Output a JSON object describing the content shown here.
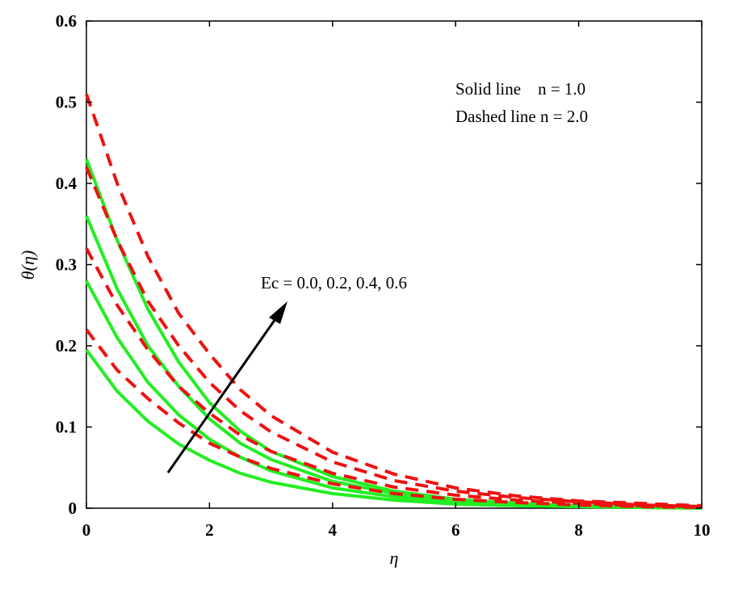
{
  "chart_data": {
    "type": "line",
    "x_label": "η",
    "y_label": "θ(η)",
    "annotations": [
      "Solid line    n = 1.0",
      "Dashed line n = 2.0",
      "Ec = 0.0, 0.2, 0.4, 0.6"
    ],
    "x": [
      0,
      0.5,
      1,
      1.5,
      2,
      2.5,
      3,
      4,
      5,
      6,
      7,
      8,
      9,
      10
    ],
    "series": [
      {
        "color": "#22ee22",
        "dashed": false,
        "values": [
          0.195,
          0.144,
          0.107,
          0.079,
          0.059,
          0.043,
          0.032,
          0.018,
          0.01,
          0.005,
          0.003,
          0.002,
          0.001,
          0.0
        ]
      },
      {
        "color": "#22ee22",
        "dashed": false,
        "values": [
          0.28,
          0.21,
          0.155,
          0.115,
          0.085,
          0.063,
          0.046,
          0.025,
          0.014,
          0.008,
          0.004,
          0.002,
          0.001,
          0.0
        ]
      },
      {
        "color": "#22ee22",
        "dashed": false,
        "values": [
          0.36,
          0.27,
          0.2,
          0.15,
          0.11,
          0.08,
          0.06,
          0.033,
          0.018,
          0.01,
          0.005,
          0.003,
          0.002,
          0.001
        ]
      },
      {
        "color": "#22ee22",
        "dashed": false,
        "values": [
          0.43,
          0.33,
          0.245,
          0.18,
          0.13,
          0.095,
          0.07,
          0.039,
          0.021,
          0.011,
          0.006,
          0.003,
          0.002,
          0.001
        ]
      },
      {
        "color": "#ee1111",
        "dashed": true,
        "values": [
          0.22,
          0.17,
          0.135,
          0.105,
          0.08,
          0.063,
          0.049,
          0.03,
          0.018,
          0.011,
          0.007,
          0.004,
          0.002,
          0.001
        ]
      },
      {
        "color": "#ee1111",
        "dashed": true,
        "values": [
          0.32,
          0.25,
          0.195,
          0.15,
          0.117,
          0.09,
          0.07,
          0.043,
          0.026,
          0.016,
          0.01,
          0.006,
          0.003,
          0.002
        ]
      },
      {
        "color": "#ee1111",
        "dashed": true,
        "values": [
          0.42,
          0.33,
          0.255,
          0.2,
          0.155,
          0.12,
          0.094,
          0.057,
          0.034,
          0.021,
          0.013,
          0.008,
          0.004,
          0.002
        ]
      },
      {
        "color": "#ee1111",
        "dashed": true,
        "values": [
          0.51,
          0.4,
          0.31,
          0.24,
          0.19,
          0.146,
          0.114,
          0.069,
          0.042,
          0.025,
          0.015,
          0.009,
          0.006,
          0.003
        ]
      }
    ],
    "xlim": [
      0,
      10
    ],
    "xticks": [
      0,
      2,
      4,
      6,
      8,
      10
    ],
    "ylim": [
      0,
      0.6
    ],
    "yticks": [
      0,
      0.1,
      0.2,
      0.3,
      0.4,
      0.5,
      0.6
    ]
  }
}
